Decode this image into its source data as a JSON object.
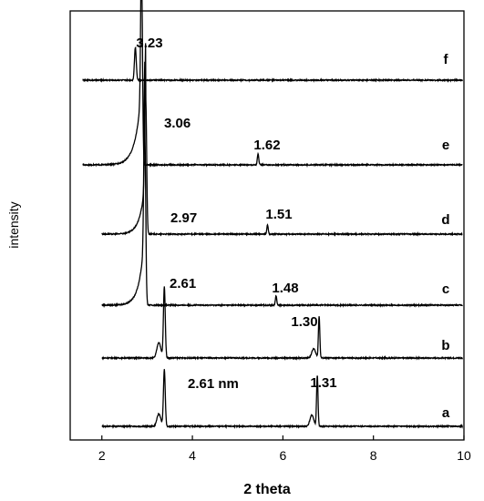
{
  "chart_data": {
    "type": "line",
    "title": "",
    "xlabel": "2 theta",
    "ylabel": "intensity",
    "xlim": [
      1.3,
      10
    ],
    "xticks": [
      "2",
      "4",
      "6",
      "8",
      "10"
    ],
    "grid": false,
    "legend": "none",
    "y_ticks_shown": false,
    "series": [
      {
        "name": "a",
        "peaks": [
          {
            "x": 3.38,
            "label": "2.61 nm"
          },
          {
            "x": 6.76,
            "label": "1.31"
          }
        ]
      },
      {
        "name": "b",
        "peaks": [
          {
            "x": 3.38,
            "label": ""
          },
          {
            "x": 6.8,
            "label": "1.30"
          }
        ]
      },
      {
        "name": "c",
        "peaks": [
          {
            "x": 2.95,
            "label": "2.61"
          },
          {
            "x": 5.85,
            "label": "1.48"
          }
        ]
      },
      {
        "name": "d",
        "peaks": [
          {
            "x": 2.97,
            "label": "2.97"
          },
          {
            "x": 5.66,
            "label": "1.51"
          }
        ]
      },
      {
        "name": "e",
        "peaks": [
          {
            "x": 2.88,
            "label": "3.06"
          },
          {
            "x": 5.45,
            "label": "1.62"
          }
        ]
      },
      {
        "name": "f",
        "peaks": [
          {
            "x": 2.74,
            "label": "3.23"
          }
        ]
      }
    ]
  }
}
